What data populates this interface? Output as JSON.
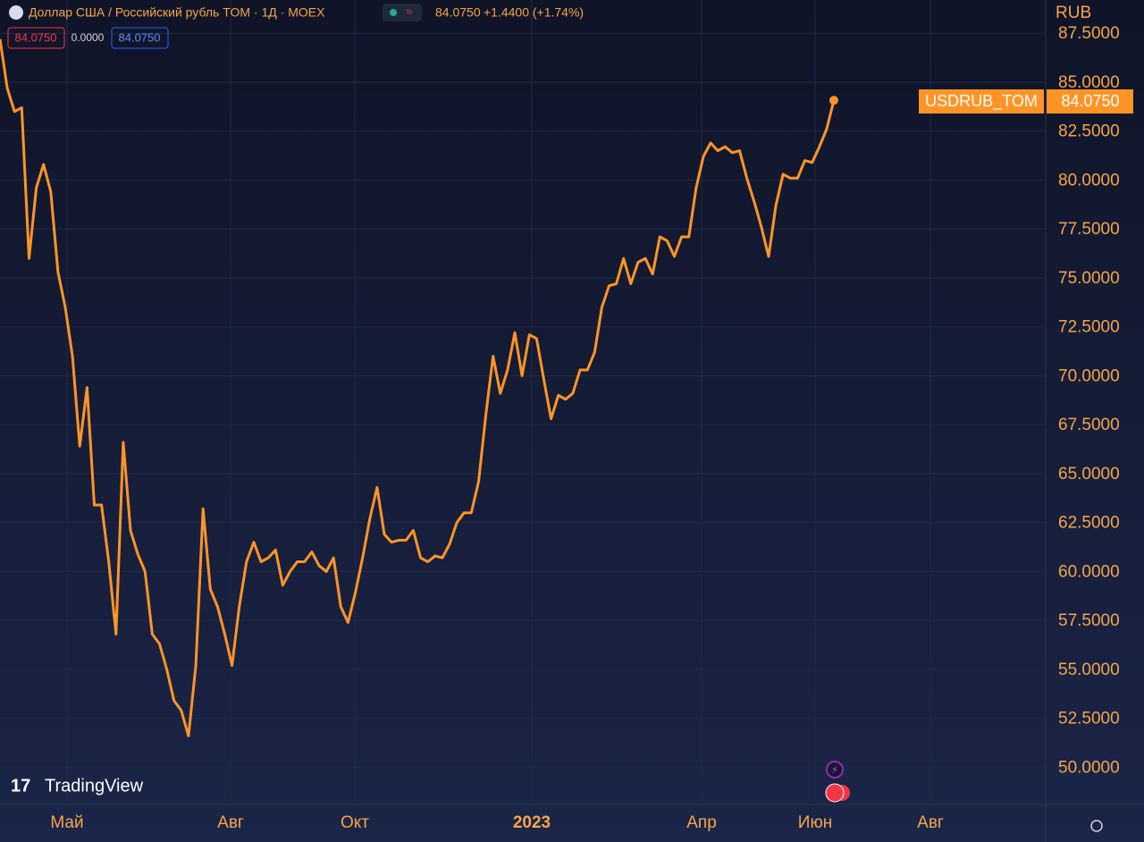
{
  "header": {
    "symbol": "Доллар США / Российский рубль TOM · 1Д · MOEX",
    "price": "84.0750",
    "change": "+1.4400 (+1.74%)",
    "boxes": [
      "84.0750",
      "0.0000",
      "84.0750"
    ],
    "currency": "RUB"
  },
  "price_tag": {
    "name": "USDRUB_TOM",
    "value": "84.0750"
  },
  "logo": "TradingView",
  "chart_data": {
    "type": "line",
    "x_labels": [
      "Май",
      "Авг",
      "Окт",
      "2023",
      "Апр",
      "Июн",
      "Авг"
    ],
    "series": [
      {
        "name": "USDRUB_TOM",
        "color": "#ff9426",
        "values": [
          87.2,
          84.7,
          83.5,
          83.7,
          76.0,
          79.6,
          80.8,
          79.4,
          75.3,
          73.5,
          71.0,
          66.4,
          69.4,
          63.4,
          63.4,
          60.5,
          56.8,
          66.6,
          62.1,
          60.9,
          60.0,
          56.8,
          56.3,
          55.0,
          53.4,
          52.9,
          51.6,
          55.2,
          63.2,
          59.1,
          58.2,
          56.8,
          55.2,
          58.2,
          60.5,
          61.5,
          60.5,
          60.7,
          61.1,
          59.3,
          60.0,
          60.5,
          60.5,
          61.0,
          60.3,
          60.0,
          60.7,
          58.2,
          57.4,
          58.9,
          60.7,
          62.7,
          64.3,
          61.9,
          61.5,
          61.6,
          61.6,
          62.1,
          60.7,
          60.5,
          60.8,
          60.7,
          61.4,
          62.5,
          63.0,
          63.0,
          64.6,
          68.0,
          71.0,
          69.1,
          70.3,
          72.2,
          70.0,
          72.1,
          71.9,
          69.8,
          67.8,
          69.0,
          68.8,
          69.1,
          70.3,
          70.3,
          71.2,
          73.5,
          74.6,
          74.7,
          76.0,
          74.7,
          75.8,
          76.0,
          75.2,
          77.1,
          76.9,
          76.1,
          77.1,
          77.1,
          79.6,
          81.2,
          81.9,
          81.5,
          81.7,
          81.4,
          81.5,
          80.1,
          78.9,
          77.6,
          76.1,
          78.7,
          80.3,
          80.1,
          80.1,
          81.0,
          80.9,
          81.7,
          82.6,
          84.075
        ]
      }
    ],
    "ylim": [
      48.1,
      89.2
    ],
    "yticks": [
      {
        "value": 87.5,
        "label": "87.5000"
      },
      {
        "value": 85,
        "label": "85.0000"
      },
      {
        "value": 82.5,
        "label": "82.5000"
      },
      {
        "value": 80,
        "label": "80.0000"
      },
      {
        "value": 77.5,
        "label": "77.5000"
      },
      {
        "value": 75,
        "label": "75.0000"
      },
      {
        "value": 72.5,
        "label": "72.5000"
      },
      {
        "value": 70,
        "label": "70.0000"
      },
      {
        "value": 67.5,
        "label": "67.5000"
      },
      {
        "value": 65,
        "label": "65.0000"
      },
      {
        "value": 62.5,
        "label": "62.5000"
      },
      {
        "value": 60,
        "label": "60.0000"
      },
      {
        "value": 57.5,
        "label": "57.5000"
      },
      {
        "value": 55,
        "label": "55.0000"
      },
      {
        "value": 52.5,
        "label": "52.5000"
      },
      {
        "value": 50,
        "label": "50.0000"
      }
    ],
    "grid": true
  }
}
